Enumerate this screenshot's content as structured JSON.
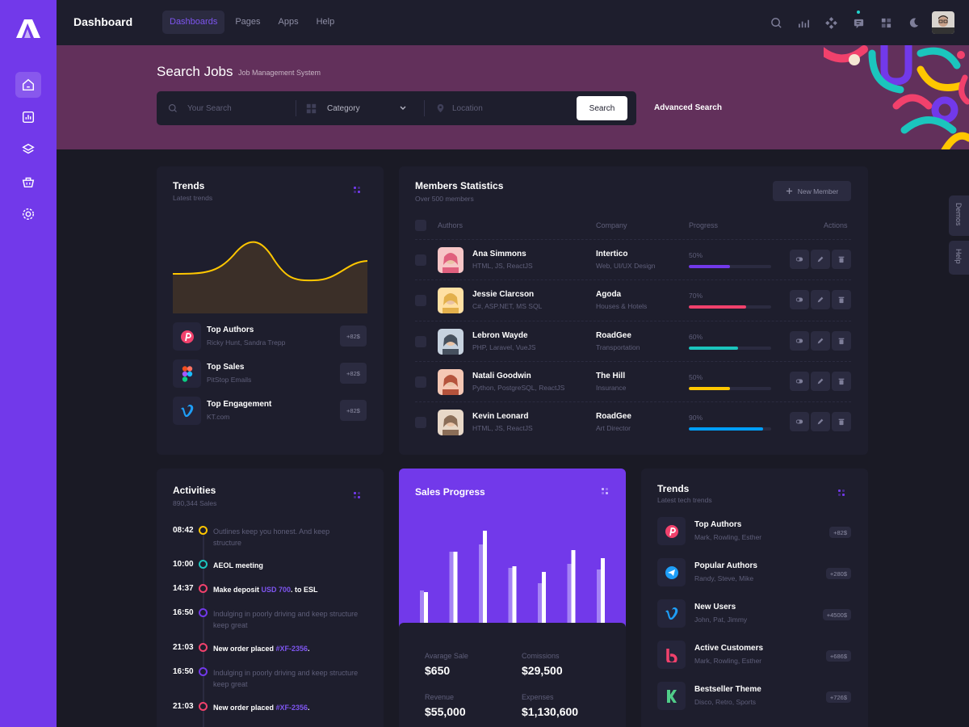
{
  "header": {
    "title": "Dashboard",
    "menu": [
      {
        "label": "Dashboards"
      },
      {
        "label": "Pages"
      },
      {
        "label": "Apps"
      },
      {
        "label": "Help"
      }
    ]
  },
  "hero": {
    "title": "Search Jobs",
    "subtitle": "Job Management System",
    "search_placeholder": "Your Search",
    "category_label": "Category",
    "location_placeholder": "Location",
    "search_button": "Search",
    "advanced_link": "Advanced Search"
  },
  "trends_card": {
    "title": "Trends",
    "subtitle": "Latest trends",
    "items": [
      {
        "name": "Top Authors",
        "desc": "Ricky Hunt, Sandra Trepp",
        "badge": "+82$"
      },
      {
        "name": "Top Sales",
        "desc": "PitStop Emails",
        "badge": "+82$"
      },
      {
        "name": "Top Engagement",
        "desc": "KT.com",
        "badge": "+82$"
      }
    ]
  },
  "members": {
    "title": "Members Statistics",
    "subtitle": "Over 500 members",
    "new_member_button": "New Member",
    "columns": {
      "authors": "Authors",
      "company": "Company",
      "progress": "Progress",
      "actions": "Actions"
    },
    "rows": [
      {
        "name": "Ana Simmons",
        "skills": "HTML, JS, ReactJS",
        "company": "Intertico",
        "company_desc": "Web, UI/UX Design",
        "progress_label": "50%",
        "progress": 0.5,
        "color": "#7239ea"
      },
      {
        "name": "Jessie Clarcson",
        "skills": "C#, ASP.NET, MS SQL",
        "company": "Agoda",
        "company_desc": "Houses & Hotels",
        "progress_label": "70%",
        "progress": 0.7,
        "color": "#f1416c"
      },
      {
        "name": "Lebron Wayde",
        "skills": "PHP, Laravel, VueJS",
        "company": "RoadGee",
        "company_desc": "Transportation",
        "progress_label": "60%",
        "progress": 0.6,
        "color": "#1bc5bd"
      },
      {
        "name": "Natali Goodwin",
        "skills": "Python, PostgreSQL, ReactJS",
        "company": "The Hill",
        "company_desc": "Insurance",
        "progress_label": "50%",
        "progress": 0.5,
        "color": "#ffc700"
      },
      {
        "name": "Kevin Leonard",
        "skills": "HTML, JS, ReactJS",
        "company": "RoadGee",
        "company_desc": "Art Director",
        "progress_label": "90%",
        "progress": 0.9,
        "color": "#009ef7"
      }
    ]
  },
  "activities": {
    "title": "Activities",
    "subtitle": "890,344 Sales",
    "items": [
      {
        "time": "08:42",
        "text": "Outlines keep you honest. And keep structure",
        "color": "#ffc700"
      },
      {
        "time": "10:00",
        "text": "AEOL meeting",
        "color": "#1bc5bd"
      },
      {
        "time": "14:37",
        "text_a": "Make deposit ",
        "highlight": "USD 700",
        "text_b": ". to ESL",
        "color": "#f1416c"
      },
      {
        "time": "16:50",
        "text": "Indulging in poorly driving and keep structure keep great",
        "color": "#7239ea"
      },
      {
        "time": "21:03",
        "text_a": "New order placed ",
        "highlight": "#XF-2356",
        "text_b": ".",
        "color": "#f1416c"
      },
      {
        "time": "16:50",
        "text": "Indulging in poorly driving and keep structure keep great",
        "color": "#7239ea"
      },
      {
        "time": "21:03",
        "text_a": "New order placed ",
        "highlight": "#XF-2356",
        "text_b": ".",
        "color": "#f1416c"
      }
    ]
  },
  "sales": {
    "title": "Sales Progress",
    "stats": [
      {
        "label": "Avarage Sale",
        "value": "$650"
      },
      {
        "label": "Comissions",
        "value": "$29,500"
      },
      {
        "label": "Revenue",
        "value": "$55,000"
      },
      {
        "label": "Expenses",
        "value": "$1,130,600"
      }
    ]
  },
  "trends2": {
    "title": "Trends",
    "subtitle": "Latest tech trends",
    "items": [
      {
        "name": "Top Authors",
        "desc": "Mark, Rowling, Esther",
        "badge": "+82$"
      },
      {
        "name": "Popular Authors",
        "desc": "Randy, Steve, Mike",
        "badge": "+280$"
      },
      {
        "name": "New Users",
        "desc": "John, Pat, Jimmy",
        "badge": "+4500$"
      },
      {
        "name": "Active Customers",
        "desc": "Mark, Rowling, Esther",
        "badge": "+686$"
      },
      {
        "name": "Bestseller Theme",
        "desc": "Disco, Retro, Sports",
        "badge": "+726$"
      }
    ]
  },
  "side_tabs": {
    "demos": "Demos",
    "help": "Help"
  }
}
